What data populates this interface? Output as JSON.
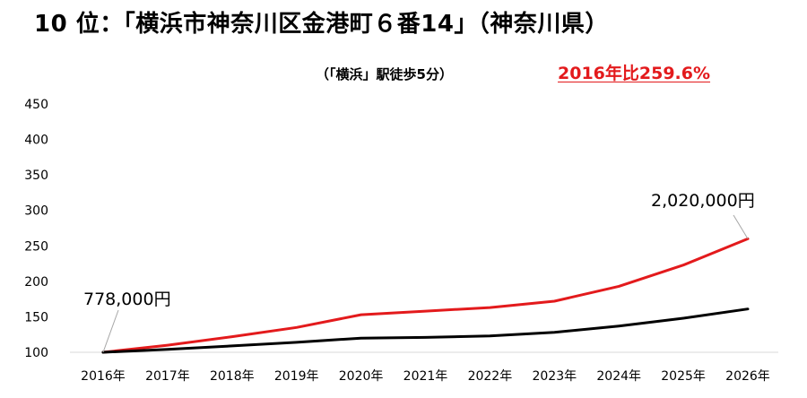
{
  "header": {
    "title": "10 位：「横浜市神奈川区金港町６番14」（神奈川県）",
    "subtitle": "（「横浜」駅徒歩5分）",
    "growth": "2016年比259.6%"
  },
  "colors": {
    "series_a": "#e31a1c",
    "series_b": "#000000",
    "growth_text": "#e31a1c"
  },
  "chart_data": {
    "type": "line",
    "categories": [
      "2016年",
      "2017年",
      "2018年",
      "2019年",
      "2020年",
      "2021年",
      "2022年",
      "2023年",
      "2024年",
      "2025年",
      "2026年"
    ],
    "ylim": [
      100,
      450
    ],
    "yticks": [
      100,
      150,
      200,
      250,
      300,
      350,
      400,
      450
    ],
    "grid": false,
    "series": [
      {
        "values": [
          100,
          110,
          122,
          135,
          153,
          158,
          163,
          172,
          193,
          223,
          260
        ],
        "color": "#e31a1c"
      },
      {
        "values": [
          100,
          104,
          109,
          114,
          120,
          121,
          123,
          128,
          137,
          148,
          161
        ],
        "color": "#000000"
      }
    ],
    "annotations": [
      {
        "text": "778,000円",
        "series": 0,
        "point": 0
      },
      {
        "text": "2,020,000円",
        "series": 0,
        "point": 10
      }
    ]
  }
}
